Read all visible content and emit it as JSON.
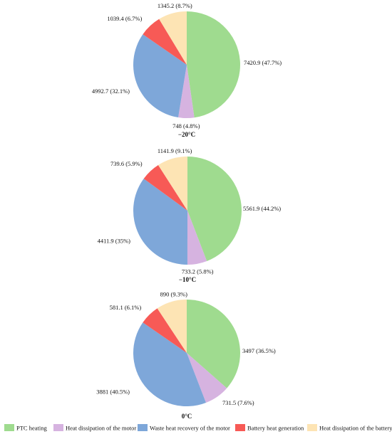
{
  "colors": {
    "ptc": "#9fdb8f",
    "motor_heat": "#d6b3e0",
    "waste_recovery": "#7ea7d9",
    "battery_gen": "#f75a56",
    "battery_dissipation": "#fde4b4"
  },
  "legend": [
    {
      "label": "PTC heating",
      "color_key": "ptc"
    },
    {
      "label": "Heat dissipation of the motor",
      "color_key": "motor_heat"
    },
    {
      "label": "Waste heat recovery of the motor",
      "color_key": "waste_recovery"
    },
    {
      "label": "Battery heat generation",
      "color_key": "battery_gen"
    },
    {
      "label": "Heat dissipation of the battery",
      "color_key": "battery_dissipation"
    }
  ],
  "chart_data": [
    {
      "type": "pie",
      "title": "−20°C",
      "series_keys": [
        "ptc",
        "motor_heat",
        "waste_recovery",
        "battery_gen",
        "battery_dissipation"
      ],
      "values": [
        7420.9,
        748,
        4992.7,
        1039.4,
        1345.2
      ],
      "labels": [
        "7420.9 (47.7%)",
        "748 (4.8%)",
        "4992.7 (32.1%)",
        "1039.4 (6.7%)",
        "1345.2 (8.7%)"
      ]
    },
    {
      "type": "pie",
      "title": "−10°C",
      "series_keys": [
        "ptc",
        "motor_heat",
        "waste_recovery",
        "battery_gen",
        "battery_dissipation"
      ],
      "values": [
        5561.9,
        733.2,
        4411.9,
        739.6,
        1141.9
      ],
      "labels": [
        "5561.9 (44.2%)",
        "733.2 (5.8%)",
        "4411.9 (35%)",
        "739.6 (5.9%)",
        "1141.9 (9.1%)"
      ]
    },
    {
      "type": "pie",
      "title": "0°C",
      "series_keys": [
        "ptc",
        "motor_heat",
        "waste_recovery",
        "battery_gen",
        "battery_dissipation"
      ],
      "values": [
        3497,
        731.5,
        3881,
        581.1,
        890
      ],
      "labels": [
        "3497 (36.5%)",
        "731.5 (7.6%)",
        "3881 (40.5%)",
        "581.1 (6.1%)",
        "890 (9.3%)"
      ]
    }
  ]
}
